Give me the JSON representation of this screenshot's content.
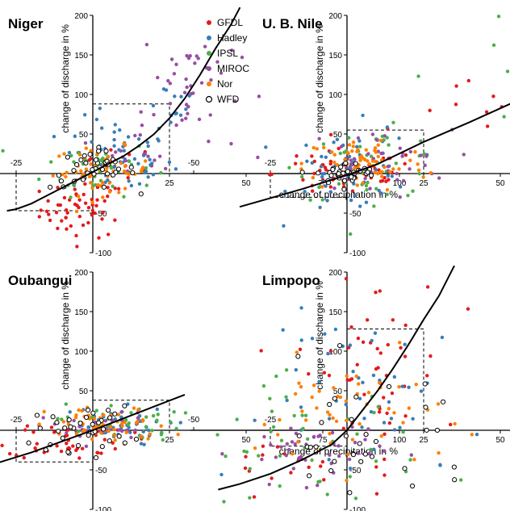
{
  "chart_data": {
    "type": "scatter",
    "legend": {
      "placement": "top-center",
      "items": [
        {
          "name": "GFDL",
          "color": "#e41a1c",
          "marker": "filled"
        },
        {
          "name": "Hadley",
          "color": "#377eb8",
          "marker": "filled"
        },
        {
          "name": "IPSL",
          "color": "#4daf4a",
          "marker": "filled"
        },
        {
          "name": "MIROC",
          "color": "#984ea3",
          "marker": "filled"
        },
        {
          "name": "Nor",
          "color": "#ff7f00",
          "marker": "filled"
        },
        {
          "name": "WFD",
          "color": "#000000",
          "marker": "open"
        }
      ]
    },
    "xlabel": "change of precipitation in %",
    "ylabel": "change of discharge in %",
    "xlim": [
      -50,
      100
    ],
    "ylim": [
      -100,
      200
    ],
    "xticks": [
      "-50",
      "-25",
      "25",
      "50",
      "75",
      "100"
    ],
    "yticks": [
      "-100",
      "-50",
      "50",
      "100",
      "150",
      "200"
    ],
    "panels": [
      {
        "title": "Niger",
        "dashed_box": {
          "x": [
            -25,
            25
          ],
          "y": [
            -47,
            88
          ]
        },
        "fit_curve": [
          [
            -28,
            -47
          ],
          [
            -25,
            -45
          ],
          [
            -20,
            -38
          ],
          [
            -15,
            -28
          ],
          [
            -10,
            -18
          ],
          [
            -5,
            -8
          ],
          [
            0,
            2
          ],
          [
            5,
            12
          ],
          [
            10,
            22
          ],
          [
            15,
            35
          ],
          [
            20,
            50
          ],
          [
            25,
            70
          ],
          [
            30,
            95
          ],
          [
            35,
            125
          ],
          [
            40,
            158
          ],
          [
            45,
            188
          ],
          [
            48,
            210
          ]
        ],
        "clusters": [
          {
            "series": "GFDL",
            "cx": -3,
            "cy": -45,
            "sx": 7,
            "sy": 18,
            "n": 55
          },
          {
            "series": "GFDL",
            "cx": 5,
            "cy": 5,
            "sx": 8,
            "sy": 15,
            "n": 15
          },
          {
            "series": "Hadley",
            "cx": 8,
            "cy": 20,
            "sx": 9,
            "sy": 25,
            "n": 60
          },
          {
            "series": "Hadley",
            "cx": 25,
            "cy": 90,
            "sx": 5,
            "sy": 15,
            "n": 12
          },
          {
            "series": "IPSL",
            "cx": 2,
            "cy": 8,
            "sx": 9,
            "sy": 18,
            "n": 45
          },
          {
            "series": "MIROC",
            "cx": 32,
            "cy": 110,
            "sx": 8,
            "sy": 45,
            "n": 45
          },
          {
            "series": "MIROC",
            "cx": 15,
            "cy": 35,
            "sx": 6,
            "sy": 15,
            "n": 15
          },
          {
            "series": "Nor",
            "cx": 3,
            "cy": 3,
            "sx": 8,
            "sy": 15,
            "n": 60
          },
          {
            "series": "WFD",
            "cx": 0,
            "cy": 5,
            "sx": 7,
            "sy": 12,
            "n": 38
          }
        ]
      },
      {
        "title": "U. B. Nile",
        "dashed_box": {
          "x": [
            -25,
            25
          ],
          "y": [
            -30,
            55
          ]
        },
        "fit_curve": [
          [
            -35,
            -42
          ],
          [
            -25,
            -31
          ],
          [
            -15,
            -20
          ],
          [
            -5,
            -8
          ],
          [
            0,
            -2
          ],
          [
            10,
            12
          ],
          [
            25,
            40
          ],
          [
            40,
            65
          ],
          [
            60,
            100
          ],
          [
            80,
            140
          ],
          [
            100,
            198
          ]
        ],
        "clusters": [
          {
            "series": "GFDL",
            "cx": 0,
            "cy": 0,
            "sx": 12,
            "sy": 15,
            "n": 60
          },
          {
            "series": "GFDL",
            "cx": 45,
            "cy": 75,
            "sx": 12,
            "sy": 20,
            "n": 14
          },
          {
            "series": "Hadley",
            "cx": 2,
            "cy": 5,
            "sx": 10,
            "sy": 28,
            "n": 60
          },
          {
            "series": "IPSL",
            "cx": 8,
            "cy": 12,
            "sx": 12,
            "sy": 22,
            "n": 45
          },
          {
            "series": "IPSL",
            "cx": 65,
            "cy": 120,
            "sx": 18,
            "sy": 35,
            "n": 20
          },
          {
            "series": "MIROC",
            "cx": 10,
            "cy": 15,
            "sx": 12,
            "sy": 20,
            "n": 40
          },
          {
            "series": "Nor",
            "cx": 6,
            "cy": 12,
            "sx": 10,
            "sy": 18,
            "n": 65
          },
          {
            "series": "WFD",
            "cx": 0,
            "cy": 0,
            "sx": 5,
            "sy": 7,
            "n": 40
          }
        ]
      },
      {
        "title": "Oubangui",
        "dashed_box": {
          "x": [
            -25,
            25
          ],
          "y": [
            -40,
            38
          ]
        },
        "fit_curve": [
          [
            -40,
            -50
          ],
          [
            -30,
            -40
          ],
          [
            -20,
            -28
          ],
          [
            -10,
            -14
          ],
          [
            0,
            0
          ],
          [
            10,
            15
          ],
          [
            20,
            30
          ],
          [
            30,
            45
          ]
        ],
        "clusters": [
          {
            "series": "GFDL",
            "cx": -8,
            "cy": -12,
            "sx": 10,
            "sy": 12,
            "n": 45
          },
          {
            "series": "Hadley",
            "cx": 5,
            "cy": 5,
            "sx": 10,
            "sy": 12,
            "n": 50
          },
          {
            "series": "IPSL",
            "cx": 8,
            "cy": 10,
            "sx": 10,
            "sy": 12,
            "n": 40
          },
          {
            "series": "MIROC",
            "cx": 2,
            "cy": 2,
            "sx": 9,
            "sy": 10,
            "n": 35
          },
          {
            "series": "Nor",
            "cx": 5,
            "cy": 6,
            "sx": 10,
            "sy": 12,
            "n": 60
          },
          {
            "series": "WFD",
            "cx": -3,
            "cy": 2,
            "sx": 8,
            "sy": 14,
            "n": 38
          }
        ]
      },
      {
        "title": "Limpopo",
        "dashed_box": {
          "x": [
            -25,
            25
          ],
          "y": [
            -20,
            128
          ]
        },
        "fit_curve": [
          [
            -42,
            -75
          ],
          [
            -35,
            -68
          ],
          [
            -25,
            -55
          ],
          [
            -15,
            -38
          ],
          [
            -5,
            -18
          ],
          [
            0,
            0
          ],
          [
            5,
            25
          ],
          [
            10,
            50
          ],
          [
            15,
            78
          ],
          [
            20,
            108
          ],
          [
            25,
            140
          ],
          [
            30,
            170
          ],
          [
            35,
            208
          ]
        ],
        "clusters": [
          {
            "series": "GFDL",
            "cx": 8,
            "cy": 75,
            "sx": 12,
            "sy": 65,
            "n": 55
          },
          {
            "series": "GFDL",
            "cx": -25,
            "cy": -45,
            "sx": 10,
            "sy": 15,
            "n": 15
          },
          {
            "series": "Hadley",
            "cx": 10,
            "cy": 40,
            "sx": 18,
            "sy": 55,
            "n": 50
          },
          {
            "series": "IPSL",
            "cx": -15,
            "cy": -20,
            "sx": 20,
            "sy": 40,
            "n": 55
          },
          {
            "series": "MIROC",
            "cx": -12,
            "cy": -25,
            "sx": 12,
            "sy": 20,
            "n": 45
          },
          {
            "series": "Nor",
            "cx": 0,
            "cy": 20,
            "sx": 15,
            "sy": 35,
            "n": 55
          },
          {
            "series": "WFD",
            "cx": 5,
            "cy": -15,
            "sx": 18,
            "sy": 45,
            "n": 35
          }
        ]
      }
    ]
  }
}
